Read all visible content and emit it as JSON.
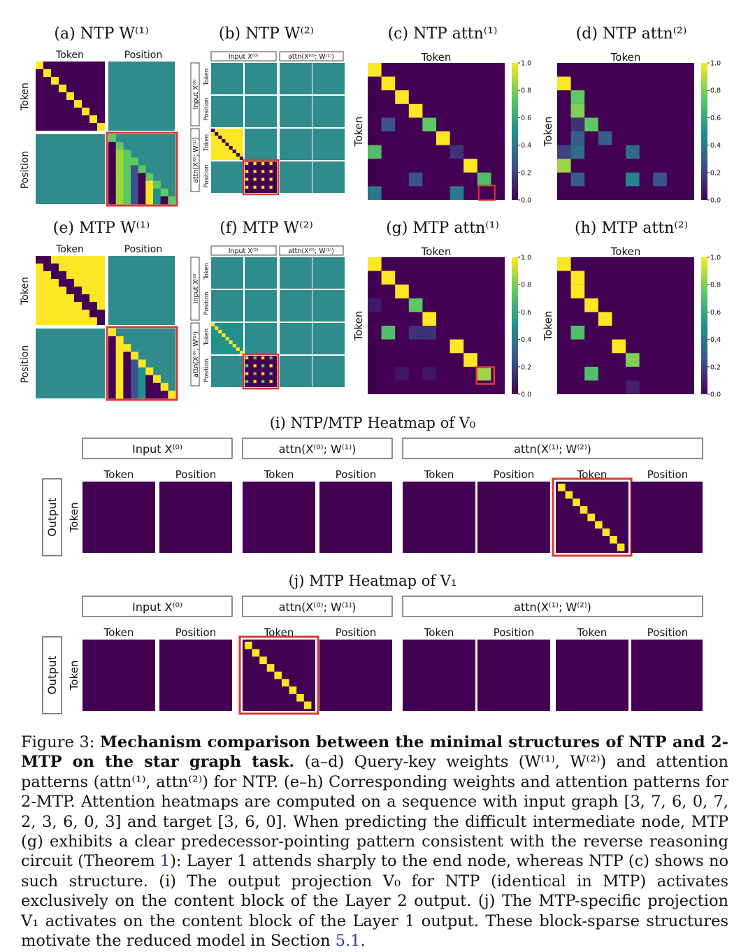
{
  "colors": {
    "purple": "#440154",
    "teal": "#2f8b8c",
    "yellow": "#fde725",
    "red": "#d93a33",
    "green": "#9fd938",
    "lightgreen": "#5ec962",
    "blue": "#3b528b",
    "darkblue": "#31356e",
    "midteal": "#21918c",
    "mediumpurple": "#482475"
  },
  "labels": {
    "token": "Token",
    "position": "Position",
    "output": "Output",
    "input_x0": "Input X⁽⁰⁾",
    "attn1": "attn(X⁽⁰⁾; W⁽¹⁾)",
    "attn2": "attn(X⁽¹⁾; W⁽²⁾)"
  },
  "panels": {
    "a": "(a) NTP W⁽¹⁾",
    "b": "(b) NTP W⁽²⁾",
    "c": "(c) NTP attn⁽¹⁾",
    "d": "(d) NTP attn⁽²⁾",
    "e": "(e) MTP W⁽¹⁾",
    "f": "(f) MTP W⁽²⁾",
    "g": "(g) MTP attn⁽¹⁾",
    "h": "(h) MTP attn⁽²⁾",
    "i": "(i) NTP/MTP Heatmap of V₀",
    "j": "(j) MTP Heatmap of V₁"
  },
  "colorbar_ticks": [
    "1.0",
    "0.8",
    "0.6",
    "0.4",
    "0.2",
    "0.0"
  ],
  "caption": {
    "lead": "Figure 3: ",
    "bold": "Mechanism comparison between the minimal structures of NTP and 2-MTP on the star graph task.",
    "part1": " (a–d) Query-key weights (W⁽¹⁾, W⁽²⁾) and attention patterns (attn⁽¹⁾, attn⁽²⁾) for NTP. (e–h) Corresponding weights and attention patterns for 2-MTP. Attention heatmaps are computed on a sequence with input graph [3, 7, 6, 0, 7, 2, 3, 6, 0, 3] and target [3, 6, 0]. When predicting the difficult intermediate node, MTP (g) exhibits a clear predecessor-pointing pattern consistent with the reverse reasoning circuit (Theorem ",
    "ref1": "1",
    "part2": "): Layer 1 attends sharply to the end node, whereas NTP (c) shows no such structure. (i) The output projection V₀ for NTP (identical in MTP) activates exclusively on the content block of the Layer 2 output. (j) The MTP-specific projection V₁ activates on the content block of the Layer 1 output. These block-sparse structures motivate the reduced model in Section ",
    "ref2": "5.1",
    "part3": "."
  },
  "chart_data": [
    {
      "type": "heatmap",
      "title": "(c) NTP attn⁽¹⁾",
      "xlabel": "Token",
      "ylabel": "Token",
      "clim": [
        0,
        1
      ],
      "cells": [
        [
          0,
          0,
          1.0
        ],
        [
          1,
          1,
          1.0
        ],
        [
          2,
          2,
          1.0
        ],
        [
          3,
          3,
          1.0
        ],
        [
          4,
          4,
          0.75
        ],
        [
          5,
          5,
          1.0
        ],
        [
          6,
          6,
          0.15
        ],
        [
          7,
          7,
          1.0
        ],
        [
          8,
          8,
          0.7
        ],
        [
          4,
          1,
          0.25
        ],
        [
          6,
          0,
          0.7
        ],
        [
          8,
          3,
          0.25
        ],
        [
          9,
          0,
          0.4
        ],
        [
          9,
          6,
          0.4
        ],
        [
          9,
          8,
          0.0
        ]
      ]
    },
    {
      "type": "heatmap",
      "title": "(d) NTP attn⁽²⁾",
      "xlabel": "Token",
      "ylabel": "Token",
      "clim": [
        0,
        1
      ],
      "cells": [
        [
          1,
          0,
          1.0
        ],
        [
          2,
          1,
          0.75
        ],
        [
          3,
          1,
          0.8
        ],
        [
          4,
          2,
          0.75
        ],
        [
          4,
          1,
          0.15
        ],
        [
          5,
          1,
          0.3
        ],
        [
          5,
          3,
          0.3
        ],
        [
          6,
          0,
          0.2
        ],
        [
          6,
          1,
          0.35
        ],
        [
          6,
          5,
          0.35
        ],
        [
          7,
          0,
          0.85
        ],
        [
          8,
          1,
          0.3
        ],
        [
          8,
          5,
          0.45
        ],
        [
          8,
          7,
          0.25
        ]
      ]
    },
    {
      "type": "heatmap",
      "title": "(g) MTP attn⁽¹⁾",
      "xlabel": "Token",
      "ylabel": "Token",
      "clim": [
        0,
        1
      ],
      "cells": [
        [
          0,
          0,
          1.0
        ],
        [
          1,
          1,
          1.0
        ],
        [
          2,
          2,
          1.0
        ],
        [
          3,
          3,
          0.75
        ],
        [
          4,
          4,
          1.0
        ],
        [
          5,
          1,
          0.7
        ],
        [
          5,
          3,
          0.15
        ],
        [
          5,
          4,
          0.15
        ],
        [
          6,
          6,
          1.0
        ],
        [
          7,
          7,
          1.0
        ],
        [
          8,
          8,
          0.85
        ],
        [
          3,
          0,
          0.08
        ],
        [
          8,
          2,
          0.06
        ],
        [
          8,
          4,
          0.06
        ]
      ]
    },
    {
      "type": "heatmap",
      "title": "(h) MTP attn⁽²⁾",
      "xlabel": "Token",
      "ylabel": "Token",
      "clim": [
        0,
        1
      ],
      "cells": [
        [
          0,
          0,
          1.0
        ],
        [
          1,
          1,
          1.0
        ],
        [
          2,
          1,
          1.0
        ],
        [
          3,
          2,
          1.0
        ],
        [
          4,
          3,
          1.0
        ],
        [
          5,
          1,
          0.7
        ],
        [
          6,
          4,
          1.0
        ],
        [
          7,
          5,
          0.8
        ],
        [
          8,
          2,
          0.7
        ],
        [
          9,
          5,
          0.1
        ]
      ]
    }
  ]
}
